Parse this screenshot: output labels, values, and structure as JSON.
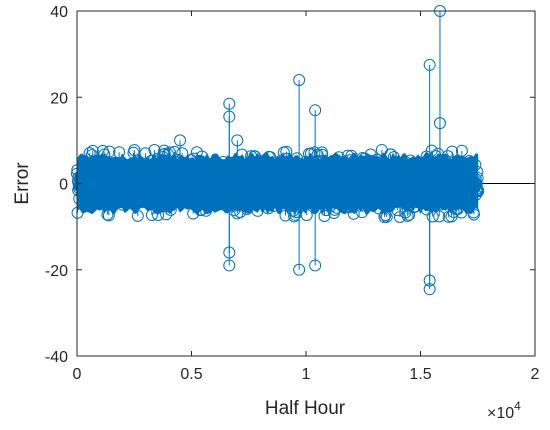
{
  "chart_data": {
    "type": "stem",
    "xlabel": "Half Hour",
    "ylabel": "Error",
    "x_multiplier_label": "×10",
    "x_multiplier_exponent": "4",
    "xlim": [
      0,
      20000
    ],
    "ylim": [
      -40,
      40
    ],
    "x_ticks": [
      0,
      5000,
      10000,
      15000,
      20000
    ],
    "x_tick_labels": [
      "0",
      "0.5",
      "1",
      "1.5",
      "2"
    ],
    "y_ticks": [
      -40,
      -20,
      0,
      20,
      40
    ],
    "y_tick_labels": [
      "-40",
      "-20",
      "0",
      "20",
      "40"
    ],
    "grid": false,
    "marker": "open-circle",
    "color": "#0072BD",
    "n_points": 17520,
    "dense_band": {
      "x_range": [
        0,
        17520
      ],
      "typical_error_range": [
        -8,
        8
      ]
    },
    "outliers": [
      {
        "x": 4500,
        "y": 10
      },
      {
        "x": 6650,
        "y": 18.5
      },
      {
        "x": 6650,
        "y": 15.5
      },
      {
        "x": 6650,
        "y": -16
      },
      {
        "x": 6650,
        "y": -19
      },
      {
        "x": 7000,
        "y": 10
      },
      {
        "x": 9700,
        "y": 24
      },
      {
        "x": 9700,
        "y": -20
      },
      {
        "x": 10400,
        "y": 17
      },
      {
        "x": 10400,
        "y": -19
      },
      {
        "x": 15400,
        "y": 27.5
      },
      {
        "x": 15400,
        "y": -22.5
      },
      {
        "x": 15400,
        "y": -24.5
      },
      {
        "x": 15850,
        "y": 40
      },
      {
        "x": 15850,
        "y": 14
      }
    ],
    "zero_line_extends_to": 20000
  }
}
